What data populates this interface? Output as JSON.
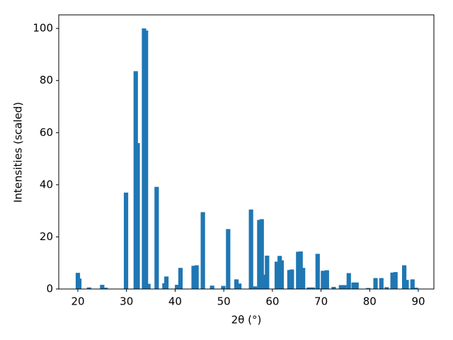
{
  "chart_data": {
    "type": "bar",
    "xlabel": "2θ (°)",
    "ylabel": "Intensities (scaled)",
    "x": [
      20,
      20.3,
      22.3,
      25,
      25.7,
      29.9,
      31.9,
      32.3,
      33.6,
      34.0,
      34.5,
      36.2,
      37.8,
      38.2,
      40.4,
      41.1,
      43.8,
      44.4,
      45.7,
      47.6,
      49.9,
      50.9,
      52.6,
      53.2,
      55.6,
      56.4,
      57.3,
      57.8,
      58.2,
      58.9,
      60.9,
      61.5,
      61.9,
      63.5,
      64.0,
      65.3,
      65.8,
      66.3,
      67.5,
      68.3,
      69.3,
      70.4,
      71.2,
      72.6,
      74.1,
      74.8,
      75.7,
      76.7,
      77.3,
      79.7,
      81.2,
      82.4,
      83.5,
      84.7,
      85.3,
      87.1,
      87.6,
      88.8,
      89.5
    ],
    "values": [
      6.2,
      4.0,
      0.6,
      1.6,
      0.5,
      37,
      83.6,
      56,
      100,
      99.2,
      2,
      39.2,
      2.2,
      4.8,
      1.6,
      8.1,
      8.9,
      9.1,
      29.5,
      1.3,
      1.2,
      23,
      3.7,
      2.1,
      30.5,
      1,
      26.5,
      26.8,
      5.5,
      12.8,
      10.5,
      12.7,
      11,
      7.3,
      7.5,
      14.3,
      14.4,
      8.1,
      0.6,
      0.6,
      13.5,
      7,
      7.2,
      0.8,
      1.5,
      1.5,
      6.1,
      2.5,
      2.5,
      0.4,
      4.2,
      4.2,
      0.7,
      6.3,
      6.5,
      9.1,
      3.5,
      3.7,
      0.5
    ],
    "color": "#1f77b4",
    "xlim": [
      16.07,
      93.2
    ],
    "ylim": [
      0,
      105.2
    ],
    "xticks": [
      20,
      30,
      40,
      50,
      60,
      70,
      80,
      90
    ],
    "yticks": [
      0,
      20,
      40,
      60,
      80,
      100
    ]
  }
}
